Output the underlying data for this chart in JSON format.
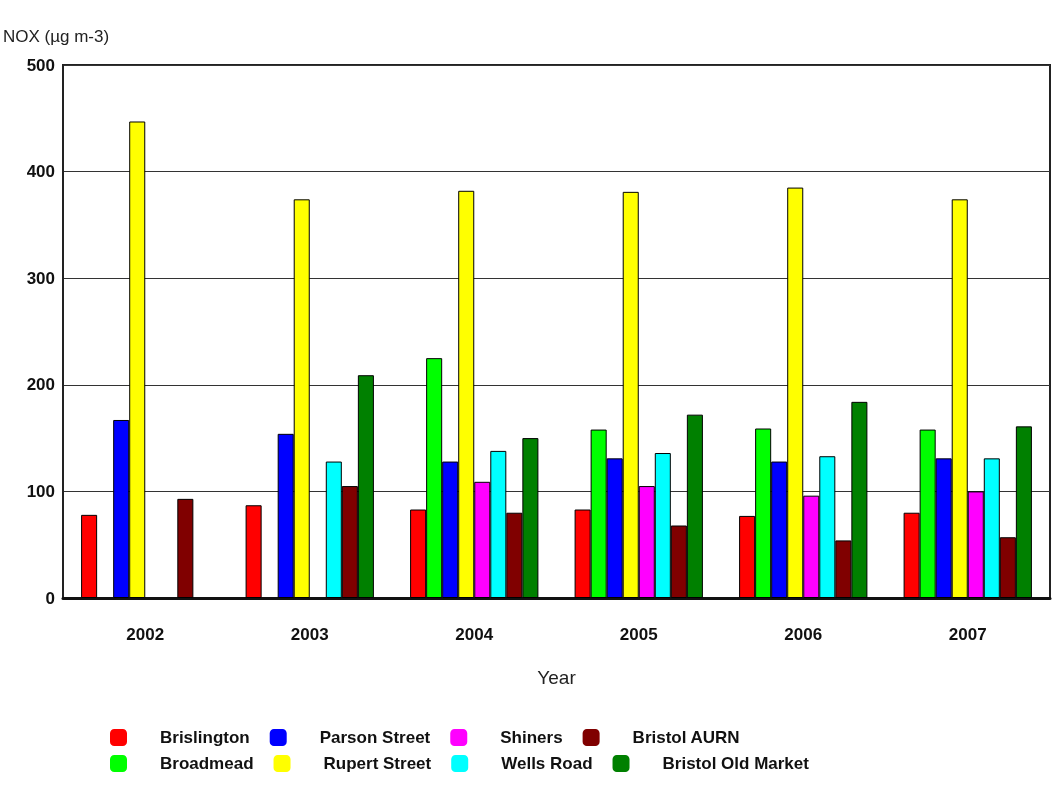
{
  "chart_data": {
    "type": "bar",
    "xlabel": "Year",
    "ylabel": "NOX (µg m-3)",
    "categories": [
      "2002",
      "2003",
      "2004",
      "2005",
      "2006",
      "2007"
    ],
    "series": [
      {
        "name": "Brislington",
        "color": "#ff0000",
        "values": [
          78,
          87,
          83,
          83,
          77,
          80
        ]
      },
      {
        "name": "Broadmead",
        "color": "#00ff00",
        "values": [
          null,
          null,
          225,
          158,
          159,
          158
        ]
      },
      {
        "name": "Parson Street",
        "color": "#0000ff",
        "values": [
          167,
          154,
          128,
          131,
          128,
          131
        ]
      },
      {
        "name": "Rupert Street",
        "color": "#ffff00",
        "values": [
          447,
          374,
          382,
          381,
          385,
          374
        ]
      },
      {
        "name": "Shiners",
        "color": "#ff00ff",
        "values": [
          null,
          null,
          109,
          105,
          96,
          100
        ]
      },
      {
        "name": "Wells Road",
        "color": "#00ffff",
        "values": [
          null,
          128,
          138,
          136,
          133,
          131
        ]
      },
      {
        "name": "Bristol AURN",
        "color": "#800000",
        "values": [
          93,
          105,
          80,
          68,
          54,
          57
        ]
      },
      {
        "name": "Bristol Old Market",
        "color": "#008000",
        "values": [
          null,
          209,
          150,
          172,
          184,
          161
        ]
      }
    ],
    "ylim": [
      0,
      500
    ],
    "yticks": [
      0,
      100,
      200,
      300,
      400,
      500
    ],
    "grid": "y",
    "legend": "bottom"
  }
}
